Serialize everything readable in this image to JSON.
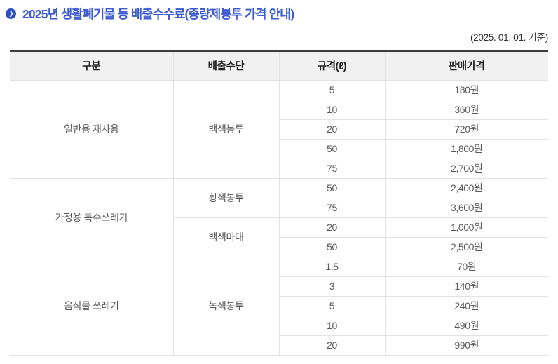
{
  "page": {
    "title": "2025년 생활폐기물 등 배출수수료(종량제봉투 가격 안내)",
    "date_note": "(2025. 01. 01. 기준)",
    "title_icon": {
      "name": "arrow-circle-icon",
      "glyph": "❯"
    },
    "colors": {
      "title_blue": "#3c5bd2",
      "icon_circle_blue": "#2d4ec6",
      "table_top_border": "#3d3d3d",
      "grid_line": "#e2e2e2",
      "header_bg": "#f1f1f1",
      "header_text": "#222222",
      "body_text": "#595959"
    }
  },
  "table": {
    "headers": [
      "구분",
      "배출수단",
      "규격(ℓ)",
      "판매가격"
    ],
    "rows": [
      [
        {
          "t": "일반용 재사용",
          "rs": 5,
          "c": 0,
          "n": "category-cell"
        },
        {
          "t": "백색봉투",
          "rs": 5,
          "c": 1,
          "n": "method-cell"
        },
        {
          "t": "5",
          "c": 2,
          "n": "size-cell"
        },
        {
          "t": "180원",
          "c": 3,
          "n": "price-cell"
        }
      ],
      [
        {
          "t": "10",
          "c": 2,
          "n": "size-cell"
        },
        {
          "t": "360원",
          "c": 3,
          "n": "price-cell"
        }
      ],
      [
        {
          "t": "20",
          "c": 2,
          "n": "size-cell"
        },
        {
          "t": "720원",
          "c": 3,
          "n": "price-cell"
        }
      ],
      [
        {
          "t": "50",
          "c": 2,
          "n": "size-cell"
        },
        {
          "t": "1,800원",
          "c": 3,
          "n": "price-cell"
        }
      ],
      [
        {
          "t": "75",
          "c": 2,
          "n": "size-cell"
        },
        {
          "t": "2,700원",
          "c": 3,
          "n": "price-cell"
        }
      ],
      [
        {
          "t": "가정용 특수쓰레기",
          "rs": 4,
          "c": 0,
          "n": "category-cell"
        },
        {
          "t": "황색봉투",
          "rs": 2,
          "c": 1,
          "n": "method-cell"
        },
        {
          "t": "50",
          "c": 2,
          "n": "size-cell"
        },
        {
          "t": "2,400원",
          "c": 3,
          "n": "price-cell"
        }
      ],
      [
        {
          "t": "75",
          "c": 2,
          "n": "size-cell"
        },
        {
          "t": "3,600원",
          "c": 3,
          "n": "price-cell"
        }
      ],
      [
        {
          "t": "백색마대",
          "rs": 2,
          "c": 1,
          "n": "method-cell"
        },
        {
          "t": "20",
          "c": 2,
          "n": "size-cell"
        },
        {
          "t": "1,000원",
          "c": 3,
          "n": "price-cell"
        }
      ],
      [
        {
          "t": "50",
          "c": 2,
          "n": "size-cell"
        },
        {
          "t": "2,500원",
          "c": 3,
          "n": "price-cell"
        }
      ],
      [
        {
          "t": "음식물 쓰레기",
          "rs": 5,
          "c": 0,
          "n": "category-cell"
        },
        {
          "t": "녹색봉투",
          "rs": 5,
          "c": 1,
          "n": "method-cell"
        },
        {
          "t": "1.5",
          "c": 2,
          "n": "size-cell"
        },
        {
          "t": "70원",
          "c": 3,
          "n": "price-cell"
        }
      ],
      [
        {
          "t": "3",
          "c": 2,
          "n": "size-cell"
        },
        {
          "t": "140원",
          "c": 3,
          "n": "price-cell"
        }
      ],
      [
        {
          "t": "5",
          "c": 2,
          "n": "size-cell"
        },
        {
          "t": "240원",
          "c": 3,
          "n": "price-cell"
        }
      ],
      [
        {
          "t": "10",
          "c": 2,
          "n": "size-cell"
        },
        {
          "t": "490원",
          "c": 3,
          "n": "price-cell"
        }
      ],
      [
        {
          "t": "20",
          "c": 2,
          "n": "size-cell"
        },
        {
          "t": "990원",
          "c": 3,
          "n": "price-cell"
        }
      ]
    ]
  }
}
